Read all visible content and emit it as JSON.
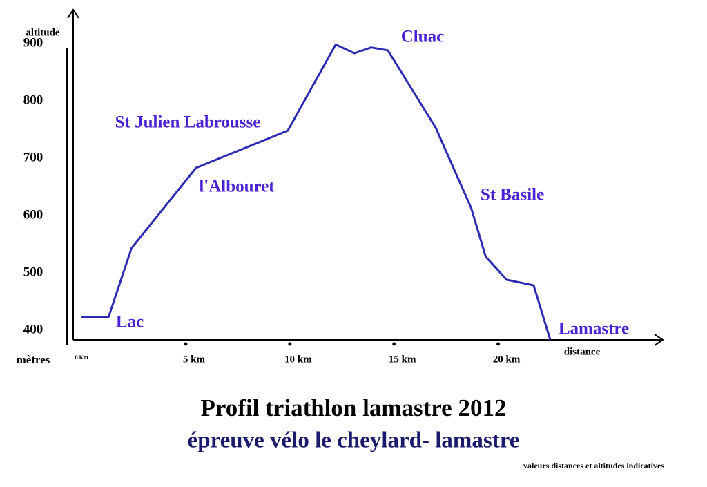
{
  "chart_data": {
    "type": "line",
    "title": "Profil triathlon lamastre 2012",
    "subtitle": "épreuve vélo le cheylard- lamastre",
    "note": "valeurs distances et altitudes indicatives",
    "y_label_top": "altitude",
    "y_label_bottom": "mètres",
    "x_label": "distance",
    "x": [
      0,
      1.3,
      2.4,
      5.5,
      9.9,
      12.2,
      13.1,
      13.9,
      14.7,
      17.0,
      18.7,
      19.4,
      20.4,
      21.7,
      22.5
    ],
    "values": [
      440,
      440,
      560,
      700,
      765,
      915,
      900,
      910,
      905,
      770,
      630,
      545,
      505,
      495,
      400
    ],
    "color": "#2b2bb4",
    "xlim": [
      -0.4,
      27.9
    ],
    "ylim": [
      400,
      975
    ],
    "xticks": [
      {
        "value": 0,
        "label": "0 Km"
      },
      {
        "value": 5,
        "label": "5 km"
      },
      {
        "value": 10,
        "label": "10 km"
      },
      {
        "value": 15,
        "label": "15 km"
      },
      {
        "value": 20,
        "label": "20 km"
      }
    ],
    "yticks": [
      400,
      500,
      600,
      700,
      800,
      900
    ],
    "annotations": [
      "Lac",
      "St Julien Labrousse",
      "l'Albouret",
      "Cluac",
      "St Basile",
      "Lamastre"
    ]
  }
}
